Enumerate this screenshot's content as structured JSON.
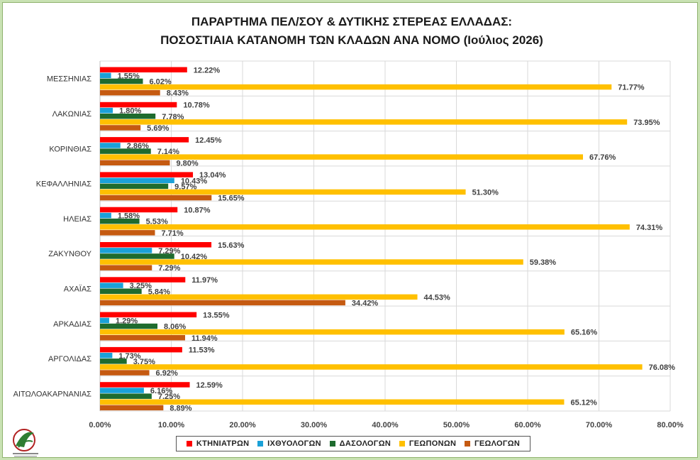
{
  "chart_data": {
    "type": "bar",
    "orientation": "horizontal",
    "title_lines": [
      "ΠΑΡΑΡΤΗΜΑ ΠΕΛ/ΣΟΥ & ΔΥΤΙΚΗΣ ΣΤΕΡΕΑΣ ΕΛΛΑΔΑΣ:",
      "ΠΟΣΟΣΤΙΑΙΑ ΚΑΤΑΝΟΜΗ ΤΩΝ ΚΛΑΔΩΝ ΑΝΑ ΝΟΜΟ (Ιούλιος 2026)"
    ],
    "categories": [
      "ΜΕΣΣΗΝΙΑΣ",
      "ΛΑΚΩΝΙΑΣ",
      "ΚΟΡΙΝΘΙΑΣ",
      "ΚΕΦΑΛΛΗΝΙΑΣ",
      "ΗΛΕΙΑΣ",
      "ΖΑΚΥΝΘΟΥ",
      "ΑΧΑΪΑΣ",
      "ΑΡΚΑΔΙΑΣ",
      "ΑΡΓΟΛΙΔΑΣ",
      "ΑΙΤΩΛΟΑΚΑΡΝΑΝΙΑΣ"
    ],
    "series": [
      {
        "name": "ΚΤΗΝΙΑΤΡΩΝ",
        "color": "#ff0000",
        "values": [
          12.22,
          10.78,
          12.45,
          13.04,
          10.87,
          15.63,
          11.97,
          13.55,
          11.53,
          12.59
        ]
      },
      {
        "name": "ΙΧΘΥΟΛΟΓΩΝ",
        "color": "#1ba1d8",
        "values": [
          1.55,
          1.8,
          2.86,
          10.43,
          1.58,
          7.29,
          3.25,
          1.29,
          1.73,
          6.16
        ]
      },
      {
        "name": "ΔΑΣΟΛΟΓΩΝ",
        "color": "#1e6b2e",
        "values": [
          6.02,
          7.78,
          7.14,
          9.57,
          5.53,
          10.42,
          5.84,
          8.06,
          3.75,
          7.25
        ]
      },
      {
        "name": "ΓΕΩΠΟΝΩΝ",
        "color": "#ffc000",
        "values": [
          71.77,
          73.95,
          67.76,
          51.3,
          74.31,
          59.38,
          44.53,
          65.16,
          76.08,
          65.12
        ]
      },
      {
        "name": "ΓΕΩΛΟΓΩΝ",
        "color": "#c55a11",
        "values": [
          8.43,
          5.69,
          9.8,
          15.65,
          7.71,
          7.29,
          34.42,
          11.94,
          6.92,
          8.89
        ]
      }
    ],
    "xlim": [
      0,
      80
    ],
    "xticks": [
      0,
      10,
      20,
      30,
      40,
      50,
      60,
      70,
      80
    ],
    "tick_labels": [
      "0.00%",
      "10.00%",
      "20.00%",
      "30.00%",
      "40.00%",
      "50.00%",
      "60.00%",
      "70.00%",
      "80.00%"
    ],
    "data_label_suffix": "%",
    "grid": true,
    "legend_position": "bottom"
  }
}
